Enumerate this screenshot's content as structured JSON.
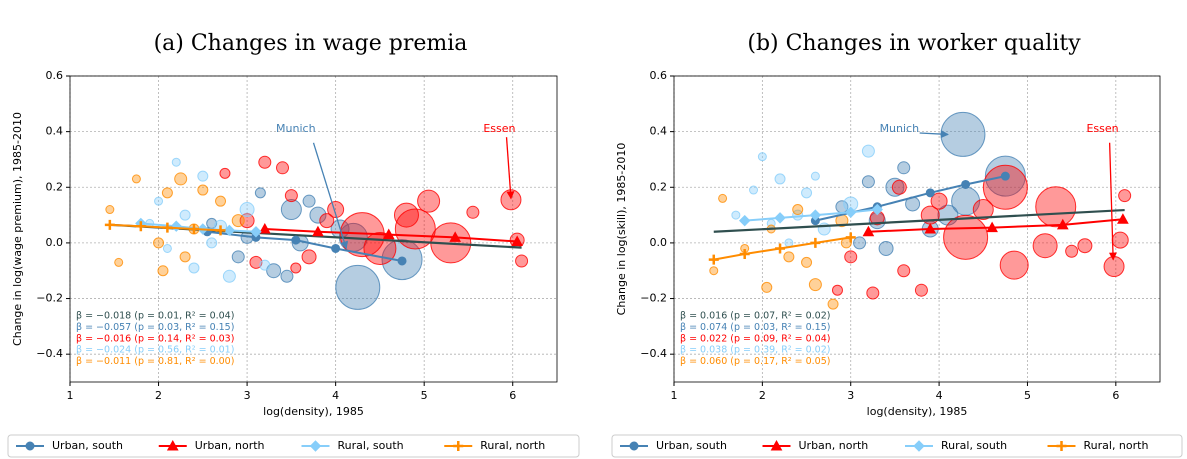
{
  "chart_data": [
    {
      "type": "scatter",
      "title": "(a) Changes in wage premia",
      "xlabel": "log(density), 1985",
      "ylabel": "Change in log(wage premium), 1985-2010",
      "xlim": [
        1,
        6.5
      ],
      "ylim": [
        -0.5,
        0.6
      ],
      "xticks": [
        1,
        2,
        3,
        4,
        5,
        6
      ],
      "yticks": [
        {
          "value": -0.4,
          "label": "−0.4"
        },
        {
          "value": -0.2,
          "label": "−0.2"
        },
        {
          "value": 0,
          "label": "0.0"
        },
        0.2,
        0.4,
        0.6
      ],
      "grid": true,
      "series": [
        {
          "name": "Urban, south",
          "color": "#4682b4",
          "marker": "circle",
          "x": [
            4.25,
            4.75,
            4.2,
            3.5,
            3.6,
            3.3,
            2.9,
            3.8,
            3.0,
            3.45,
            4.05,
            2.6,
            3.15,
            3.7
          ],
          "y": [
            -0.16,
            -0.06,
            0.02,
            0.12,
            0.0,
            -0.1,
            -0.05,
            0.1,
            0.02,
            -0.12,
            0.05,
            0.07,
            0.18,
            0.15
          ],
          "sizes": [
            22,
            20,
            14,
            10,
            8,
            7,
            6,
            8,
            6,
            6,
            9,
            5,
            5,
            6
          ],
          "line_x": [
            2.55,
            3.1,
            3.55,
            4.0,
            4.75
          ],
          "line_y": [
            0.04,
            0.02,
            0.01,
            -0.02,
            -0.065
          ]
        },
        {
          "name": "Urban, north",
          "color": "#ff0000",
          "marker": "triangle",
          "x": [
            5.98,
            4.9,
            4.3,
            5.3,
            4.5,
            5.05,
            4.8,
            3.4,
            3.2,
            3.5,
            3.9,
            4.0,
            3.7,
            6.05,
            6.1,
            5.55,
            3.0,
            2.75,
            3.1,
            3.55
          ],
          "y": [
            0.155,
            0.05,
            0.03,
            0.0,
            -0.02,
            0.15,
            0.1,
            0.27,
            0.29,
            0.17,
            0.08,
            0.12,
            -0.05,
            0.01,
            -0.065,
            0.11,
            0.08,
            0.25,
            -0.07,
            -0.09
          ],
          "sizes": [
            10,
            20,
            22,
            20,
            16,
            11,
            12,
            6,
            6,
            6,
            7,
            8,
            7,
            7,
            6,
            6,
            7,
            5,
            6,
            5
          ],
          "line_x": [
            3.2,
            3.8,
            4.6,
            5.35,
            6.05
          ],
          "line_y": [
            0.05,
            0.04,
            0.03,
            0.02,
            0.005
          ]
        },
        {
          "name": "Rural, south",
          "color": "#87cefa",
          "marker": "diamond",
          "x": [
            2.2,
            2.5,
            2.0,
            2.3,
            2.7,
            1.9,
            2.4,
            2.8,
            2.1,
            3.0,
            2.6,
            3.2
          ],
          "y": [
            0.29,
            0.24,
            0.15,
            0.1,
            0.06,
            0.07,
            -0.09,
            -0.12,
            -0.02,
            0.12,
            0.0,
            -0.08
          ],
          "sizes": [
            4,
            5,
            4,
            5,
            6,
            4,
            5,
            6,
            4,
            7,
            5,
            5
          ],
          "line_x": [
            1.8,
            2.2,
            2.5,
            2.8,
            3.1
          ],
          "line_y": [
            0.07,
            0.06,
            0.05,
            0.045,
            0.04
          ]
        },
        {
          "name": "Rural, north",
          "color": "#ff8c00",
          "marker": "plus",
          "x": [
            1.45,
            1.75,
            2.25,
            2.5,
            2.1,
            2.0,
            2.3,
            1.55,
            2.7,
            2.05,
            2.9,
            2.4
          ],
          "y": [
            0.12,
            0.23,
            0.23,
            0.19,
            0.18,
            0.0,
            -0.05,
            -0.07,
            0.15,
            -0.1,
            0.08,
            0.05
          ],
          "sizes": [
            4,
            4,
            6,
            5,
            5,
            5,
            5,
            4,
            5,
            5,
            6,
            5
          ],
          "line_x": [
            1.45,
            1.8,
            2.1,
            2.4,
            2.7
          ],
          "line_y": [
            0.065,
            0.06,
            0.055,
            0.05,
            0.045
          ]
        }
      ],
      "fit": {
        "color": "#2f4f4f",
        "x": [
          1.45,
          6.1
        ],
        "y": [
          0.065,
          -0.017
        ]
      },
      "stats": [
        {
          "text": "β = −0.018 (p = 0.01, R² = 0.04)",
          "color": "#2f4f4f"
        },
        {
          "text": "β = −0.057 (p = 0.03, R² = 0.15)",
          "color": "#4682b4"
        },
        {
          "text": "β = −0.016 (p = 0.14, R² = 0.03)",
          "color": "#ff0000"
        },
        {
          "text": "β = −0.024 (p = 0.56, R² = 0.01)",
          "color": "#87cefa"
        },
        {
          "text": "β = −0.011 (p = 0.81, R² = 0.00)",
          "color": "#ff8c00"
        }
      ],
      "annotations": [
        {
          "text": "Munich",
          "color": "#4682b4"
        },
        {
          "text": "Essen",
          "color": "#ff0000"
        }
      ]
    },
    {
      "type": "scatter",
      "title": "(b) Changes in worker quality",
      "xlabel": "log(density), 1985",
      "ylabel": "Change in log(skill), 1985-2010",
      "xlim": [
        1,
        6.5
      ],
      "ylim": [
        -0.5,
        0.6
      ],
      "xticks": [
        1,
        2,
        3,
        4,
        5,
        6
      ],
      "yticks": [
        {
          "value": -0.4,
          "label": "−0.4"
        },
        {
          "value": -0.2,
          "label": "−0.2"
        },
        {
          "value": 0,
          "label": "0.0"
        },
        0.2,
        0.4,
        0.6
      ],
      "grid": true,
      "series": [
        {
          "name": "Urban, south",
          "color": "#4682b4",
          "marker": "circle",
          "x": [
            4.27,
            4.75,
            4.3,
            3.5,
            3.6,
            3.3,
            3.9,
            3.7,
            4.1,
            2.9,
            3.2,
            3.4,
            3.1
          ],
          "y": [
            0.39,
            0.24,
            0.15,
            0.2,
            0.27,
            0.08,
            0.05,
            0.14,
            0.1,
            0.13,
            0.22,
            -0.02,
            0.0
          ],
          "sizes": [
            22,
            20,
            14,
            9,
            6,
            8,
            8,
            7,
            10,
            6,
            6,
            7,
            6
          ],
          "line_x": [
            2.6,
            3.3,
            3.9,
            4.3,
            4.75
          ],
          "line_y": [
            0.08,
            0.13,
            0.18,
            0.21,
            0.24
          ]
        },
        {
          "name": "Urban, north",
          "color": "#ff0000",
          "marker": "triangle",
          "x": [
            5.98,
            4.75,
            4.3,
            5.32,
            4.85,
            5.2,
            4.5,
            3.9,
            3.55,
            3.3,
            3.0,
            3.6,
            3.8,
            6.1,
            6.05,
            5.65,
            3.25,
            2.85,
            4.0,
            5.5
          ],
          "y": [
            -0.085,
            0.2,
            0.02,
            0.13,
            -0.08,
            -0.01,
            0.12,
            0.1,
            0.2,
            0.09,
            -0.05,
            -0.1,
            -0.17,
            0.17,
            0.01,
            -0.01,
            -0.18,
            -0.17,
            0.15,
            -0.03
          ],
          "sizes": [
            10,
            22,
            22,
            20,
            14,
            12,
            10,
            9,
            7,
            7,
            6,
            6,
            6,
            6,
            8,
            7,
            6,
            5,
            8,
            6
          ],
          "line_x": [
            3.2,
            3.9,
            4.6,
            5.4,
            6.08
          ],
          "line_y": [
            0.04,
            0.05,
            0.055,
            0.065,
            0.085
          ]
        },
        {
          "name": "Rural, south",
          "color": "#87cefa",
          "marker": "diamond",
          "x": [
            2.0,
            2.2,
            2.5,
            3.2,
            1.9,
            2.4,
            2.7,
            2.3,
            3.0,
            2.6,
            2.1,
            1.7
          ],
          "y": [
            0.31,
            0.23,
            0.18,
            0.33,
            0.19,
            0.1,
            0.05,
            0.0,
            0.14,
            0.24,
            0.07,
            0.1
          ],
          "sizes": [
            4,
            5,
            5,
            6,
            4,
            5,
            6,
            4,
            7,
            4,
            4,
            4
          ],
          "line_x": [
            1.8,
            2.2,
            2.6,
            3.0,
            3.3
          ],
          "line_y": [
            0.08,
            0.09,
            0.1,
            0.11,
            0.12
          ]
        },
        {
          "name": "Rural, north",
          "color": "#ff8c00",
          "marker": "plus",
          "x": [
            1.55,
            1.45,
            2.05,
            2.8,
            2.6,
            2.5,
            2.3,
            2.9,
            2.1,
            1.8,
            2.95,
            2.4
          ],
          "y": [
            0.16,
            -0.1,
            -0.16,
            -0.22,
            -0.15,
            -0.07,
            -0.05,
            0.08,
            0.05,
            -0.02,
            0.0,
            0.12
          ],
          "sizes": [
            4,
            4,
            5,
            5,
            6,
            5,
            5,
            6,
            4,
            4,
            5,
            5
          ],
          "line_x": [
            1.45,
            1.8,
            2.2,
            2.6,
            3.0
          ],
          "line_y": [
            -0.06,
            -0.04,
            -0.02,
            0.0,
            0.02
          ]
        }
      ],
      "fit": {
        "color": "#2f4f4f",
        "x": [
          1.45,
          6.1
        ],
        "y": [
          0.04,
          0.118
        ]
      },
      "stats": [
        {
          "text": "β = 0.016 (p = 0.07, R² = 0.02)",
          "color": "#2f4f4f"
        },
        {
          "text": "β = 0.074 (p = 0.03, R² = 0.15)",
          "color": "#4682b4"
        },
        {
          "text": "β = 0.022 (p = 0.09, R² = 0.04)",
          "color": "#ff0000"
        },
        {
          "text": "β = 0.038 (p = 0.39, R² = 0.02)",
          "color": "#87cefa"
        },
        {
          "text": "β = 0.060 (p = 0.17, R² = 0.05)",
          "color": "#ff8c00"
        }
      ],
      "annotations": [
        {
          "text": "Munich",
          "color": "#4682b4"
        },
        {
          "text": "Essen",
          "color": "#ff0000"
        }
      ]
    }
  ]
}
